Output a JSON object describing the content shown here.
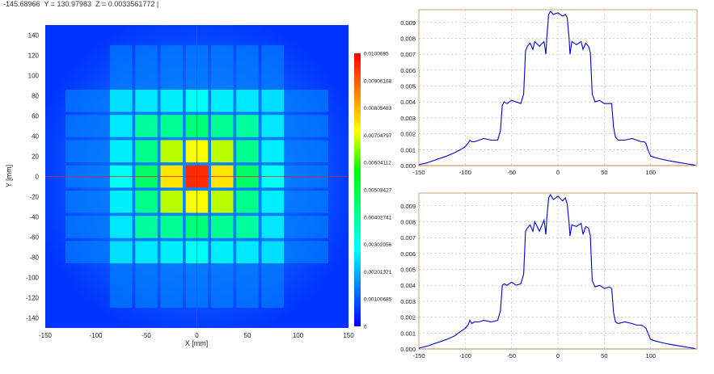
{
  "status": {
    "readout": "-145.68966  Y = 130.97983  Z = 0.0033561772 |"
  },
  "heatmap": {
    "xlabel": "X [mm]",
    "ylabel": "Y [mm]",
    "xlim": [
      -150,
      150
    ],
    "ylim": [
      -150,
      150
    ],
    "xticks": [
      "-150",
      "-100",
      "-50",
      "0",
      "50",
      "100",
      "150"
    ],
    "yticks": [
      "140",
      "120",
      "100",
      "80",
      "60",
      "40",
      "20",
      "0",
      "-20",
      "-40",
      "-60",
      "-80",
      "-100",
      "-120",
      "-140"
    ],
    "crosshair": {
      "x": 0,
      "y": 0
    },
    "colorbar": {
      "ticks": [
        "0.0100685",
        "0.00906168",
        "0.00805483",
        "0.00704797",
        "0.00604112",
        "0.00503427",
        "0.00402741",
        "0.00302056",
        "0.00201371",
        "0.00100685",
        "0"
      ],
      "colors": [
        "#0000ff",
        "#0080ff",
        "#00ffff",
        "#00ff80",
        "#00ff00",
        "#ffff00",
        "#ff8000",
        "#ff0000"
      ]
    }
  },
  "chart_data": [
    {
      "type": "heatmap",
      "xlabel": "X [mm]",
      "ylabel": "Y [mm]",
      "xlim": [
        -150,
        150
      ],
      "ylim": [
        -150,
        150
      ],
      "zlim": [
        0,
        0.0100685
      ],
      "grid_centers": [
        -75,
        -50,
        -25,
        0,
        25,
        50,
        75
      ],
      "cell_size": 22,
      "cell_values": [
        [
          0.0025,
          0.0026,
          0.0027,
          0.003,
          0.0027,
          0.0026,
          0.0025
        ],
        [
          0.0026,
          0.004,
          0.0041,
          0.0044,
          0.0041,
          0.004,
          0.0026
        ],
        [
          0.0027,
          0.0042,
          0.0068,
          0.0072,
          0.0068,
          0.0042,
          0.0027
        ],
        [
          0.003,
          0.0046,
          0.0075,
          0.0096,
          0.0075,
          0.0046,
          0.003
        ],
        [
          0.0027,
          0.0042,
          0.0068,
          0.0072,
          0.0068,
          0.0042,
          0.0027
        ],
        [
          0.0026,
          0.004,
          0.0041,
          0.0044,
          0.0041,
          0.004,
          0.0026
        ],
        [
          0.0025,
          0.0026,
          0.0027,
          0.003,
          0.0027,
          0.0026,
          0.0025
        ]
      ],
      "background": 0.0009
    },
    {
      "type": "line",
      "xlim": [
        -150,
        150
      ],
      "ylim": [
        0,
        0.0098
      ],
      "xticks": [
        -150,
        -100,
        -50,
        0,
        50,
        100
      ],
      "yticks": [
        "0.000",
        "0.001",
        "0.002",
        "0.003",
        "0.004",
        "0.005",
        "0.006",
        "0.007",
        "0.008",
        "0.009"
      ],
      "grid": true,
      "series": [
        {
          "color": "#0000dd",
          "x": [
            -150,
            -140,
            -130,
            -120,
            -112,
            -105,
            -100,
            -97,
            -95,
            -93,
            -90,
            -85,
            -80,
            -72,
            -65,
            -62,
            -60,
            -58,
            -55,
            -50,
            -45,
            -40,
            -37,
            -35,
            -33,
            -30,
            -27,
            -25,
            -20,
            -15,
            -13,
            -12,
            -10,
            -8,
            -5,
            0,
            5,
            8,
            10,
            12,
            13,
            15,
            20,
            25,
            27,
            30,
            33,
            35,
            37,
            40,
            45,
            50,
            55,
            58,
            60,
            62,
            65,
            72,
            80,
            85,
            90,
            93,
            95,
            97,
            100,
            105,
            112,
            120,
            130,
            140,
            148
          ],
          "y": [
            5e-05,
            0.0002,
            0.0004,
            0.0006,
            0.0008,
            0.001,
            0.0012,
            0.0014,
            0.0016,
            0.0015,
            0.0015,
            0.0016,
            0.0017,
            0.0016,
            0.0016,
            0.0022,
            0.0038,
            0.004,
            0.0039,
            0.0041,
            0.004,
            0.0039,
            0.0045,
            0.0072,
            0.0075,
            0.0077,
            0.0073,
            0.0078,
            0.0075,
            0.0078,
            0.007,
            0.008,
            0.0095,
            0.0097,
            0.0095,
            0.0096,
            0.0094,
            0.0095,
            0.0093,
            0.008,
            0.007,
            0.0078,
            0.0076,
            0.0078,
            0.0073,
            0.0077,
            0.0075,
            0.0071,
            0.0045,
            0.004,
            0.0041,
            0.0039,
            0.0039,
            0.0039,
            0.0024,
            0.0018,
            0.0016,
            0.0016,
            0.0017,
            0.0016,
            0.0015,
            0.0015,
            0.0014,
            0.001,
            0.0006,
            0.0005,
            0.0004,
            0.0003,
            0.0002,
            0.0001,
            3e-05
          ]
        }
      ]
    },
    {
      "type": "line",
      "xlim": [
        -150,
        150
      ],
      "ylim": [
        0,
        0.0098
      ],
      "xticks": [
        -150,
        -100,
        -50,
        0,
        50,
        100
      ],
      "yticks": [
        "0.000",
        "0.001",
        "0.002",
        "0.003",
        "0.004",
        "0.005",
        "0.006",
        "0.007",
        "0.008",
        "0.009"
      ],
      "grid": true,
      "series": [
        {
          "color": "#0000dd",
          "x": [
            -150,
            -140,
            -130,
            -120,
            -112,
            -105,
            -100,
            -97,
            -95,
            -93,
            -90,
            -85,
            -80,
            -72,
            -65,
            -62,
            -60,
            -58,
            -55,
            -50,
            -45,
            -40,
            -37,
            -35,
            -33,
            -30,
            -27,
            -25,
            -20,
            -15,
            -13,
            -12,
            -10,
            -8,
            -5,
            0,
            5,
            8,
            10,
            12,
            13,
            15,
            20,
            25,
            27,
            30,
            33,
            35,
            37,
            40,
            45,
            50,
            55,
            58,
            60,
            62,
            65,
            72,
            80,
            85,
            90,
            93,
            95,
            97,
            100,
            105,
            112,
            120,
            130,
            140,
            148
          ],
          "y": [
            5e-05,
            0.0002,
            0.0004,
            0.0006,
            0.0008,
            0.0011,
            0.0013,
            0.0015,
            0.0018,
            0.0016,
            0.0017,
            0.0017,
            0.0018,
            0.0017,
            0.0018,
            0.0024,
            0.004,
            0.0041,
            0.004,
            0.0042,
            0.004,
            0.0041,
            0.0047,
            0.0074,
            0.0076,
            0.0078,
            0.0074,
            0.008,
            0.0074,
            0.0081,
            0.0072,
            0.0082,
            0.0095,
            0.0097,
            0.0094,
            0.0096,
            0.0093,
            0.0095,
            0.0091,
            0.0079,
            0.0071,
            0.0078,
            0.0077,
            0.0079,
            0.0072,
            0.0077,
            0.0076,
            0.0071,
            0.0043,
            0.0039,
            0.004,
            0.0038,
            0.0039,
            0.0038,
            0.0023,
            0.0017,
            0.0016,
            0.0017,
            0.0016,
            0.0015,
            0.0015,
            0.0014,
            0.0013,
            0.001,
            0.0006,
            0.0005,
            0.0004,
            0.0003,
            0.0002,
            0.0001,
            3e-05
          ]
        }
      ]
    }
  ]
}
